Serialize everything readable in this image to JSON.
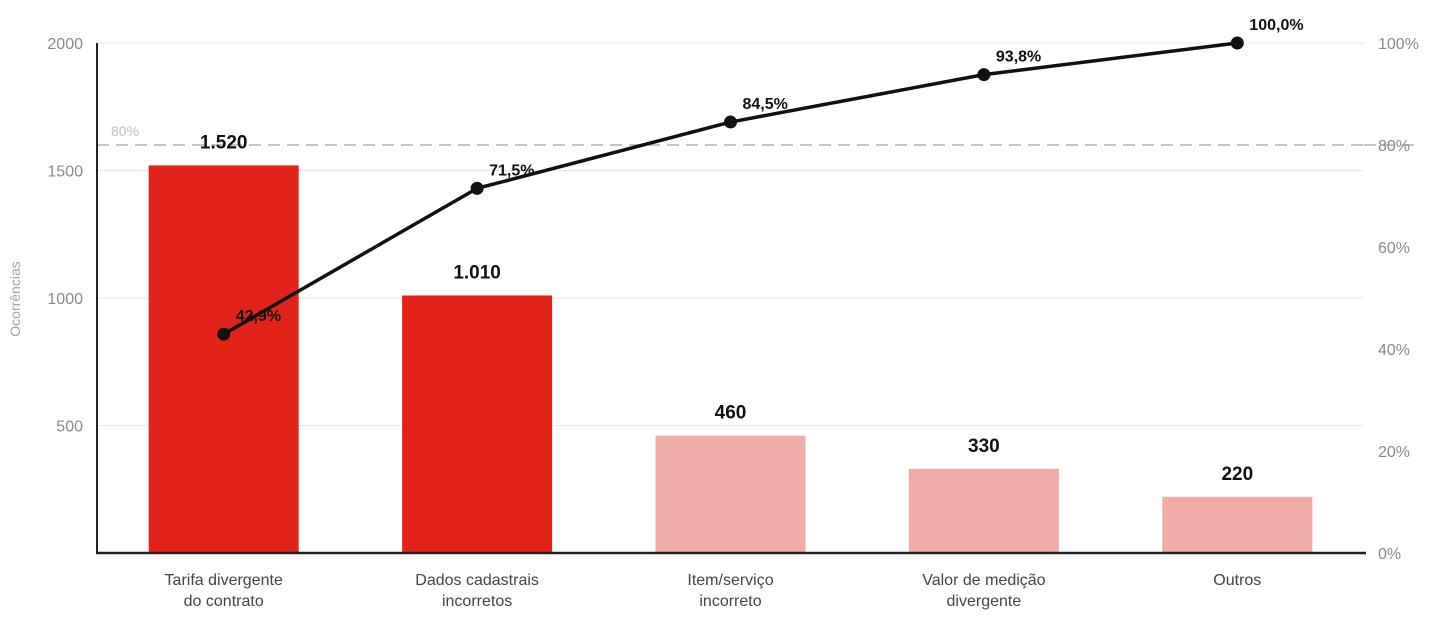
{
  "chart_data": {
    "type": "bar",
    "categories": [
      [
        "Tarifa divergente",
        "do contrato"
      ],
      [
        "Dados cadastrais",
        "incorretos"
      ],
      [
        "Item/serviço",
        "incorreto"
      ],
      [
        "Valor de medição",
        "divergente"
      ],
      [
        "Outros"
      ]
    ],
    "series": [
      {
        "values": [
          1520,
          1010,
          460,
          330,
          220
        ],
        "value_labels": [
          "1.520",
          "1.010",
          "460",
          "330",
          "220"
        ]
      }
    ],
    "cumulative": {
      "type": "line",
      "axis": "right",
      "values": [
        42.9,
        71.5,
        84.5,
        93.8,
        100.0
      ],
      "value_labels": [
        "42,9%",
        "71,5%",
        "84,5%",
        "93,8%",
        "100,0%"
      ]
    },
    "threshold": {
      "value": 80,
      "label": "80%"
    },
    "ylabel": "Ocorrências",
    "ylim": [
      0,
      2000
    ],
    "yticks": [
      500,
      1000,
      1500,
      2000
    ],
    "y2lim": [
      0,
      100
    ],
    "y2ticks": [
      "0%",
      "20%",
      "40%",
      "60%",
      "80%",
      "100%"
    ],
    "y2tick_values": [
      0,
      20,
      40,
      60,
      80,
      100
    ],
    "grid": true,
    "legend": "none",
    "colors": {
      "vital": "#e2231a",
      "trivial": "#f2aca8",
      "line": "#111111",
      "threshold": "#c4c4c4",
      "grid": "#e9e9e9",
      "axis": "#222222"
    },
    "vital_count": 2
  }
}
